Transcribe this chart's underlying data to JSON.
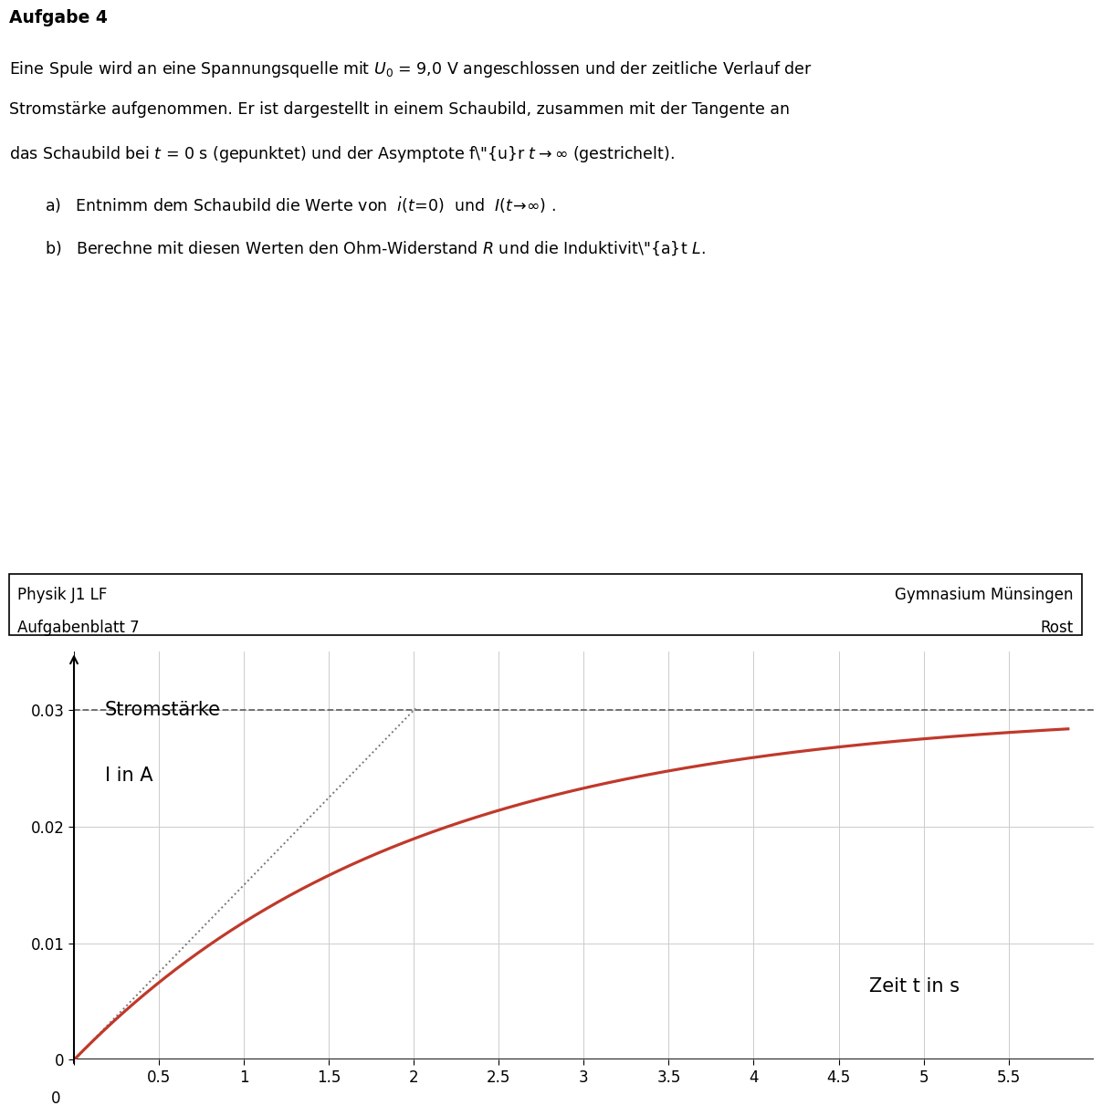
{
  "title_bold": "Aufgabe 4",
  "footer_left_line1": "Physik J1 LF",
  "footer_left_line2": "Aufgabenblatt 7",
  "footer_right_line1": "Gymnasium Münsingen",
  "footer_right_line2": "Rost",
  "ylabel_line1": "Stromstärke",
  "ylabel_line2": "I in A",
  "xlabel": "Zeit t in s",
  "xlim": [
    0,
    6.0
  ],
  "ylim": [
    0,
    0.035
  ],
  "asymptote_value": 0.03,
  "I_inf": 0.03,
  "tau": 2.0,
  "curve_color": "#c0392b",
  "tangent_color": "#777777",
  "asymptote_color": "#666666",
  "grid_color": "#cccccc",
  "xticks": [
    0,
    0.5,
    1,
    1.5,
    2,
    2.5,
    3,
    3.5,
    4,
    4.5,
    5,
    5.5
  ],
  "yticks": [
    0,
    0.01,
    0.02,
    0.03
  ],
  "ytick_labels": [
    "0",
    "0.01",
    "0.02",
    "0.03"
  ],
  "xtick_labels": [
    "0",
    "0.5",
    "1",
    "1.5",
    "2",
    "2.5",
    "3",
    "3.5",
    "4",
    "4.5",
    "5",
    "5.5"
  ]
}
